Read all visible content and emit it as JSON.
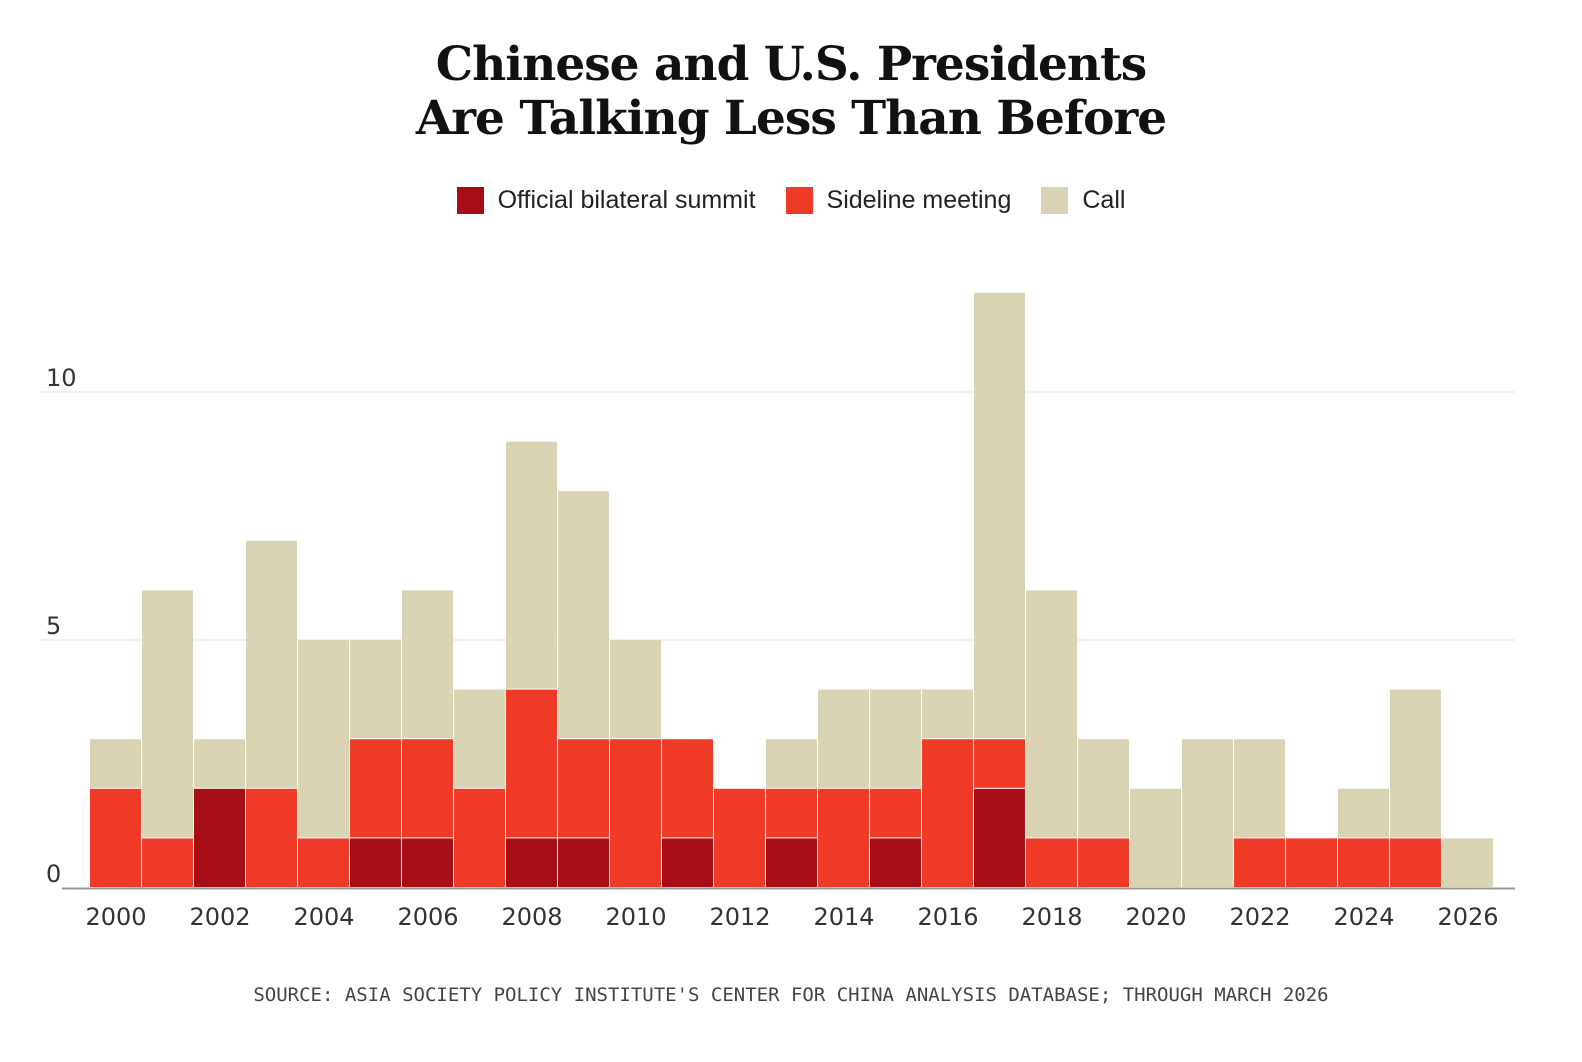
{
  "title_line1": "Chinese and U.S. Presidents",
  "title_line2": "Are Talking Less Than Before",
  "source": "SOURCE: ASIA SOCIETY POLICY INSTITUTE'S CENTER FOR CHINA ANALYSIS DATABASE; THROUGH MARCH 2026",
  "colors": {
    "summit": "#a60d14",
    "sideline": "#ef3a27",
    "call": "#d8d3b2",
    "grid": "#ececec",
    "axis": "#999999"
  },
  "chart_data": {
    "type": "bar",
    "stacked": true,
    "categories": [
      2000,
      2001,
      2002,
      2003,
      2004,
      2005,
      2006,
      2007,
      2008,
      2009,
      2010,
      2011,
      2012,
      2013,
      2014,
      2015,
      2016,
      2017,
      2018,
      2019,
      2020,
      2021,
      2022,
      2023,
      2024,
      2025,
      2026
    ],
    "x_tick_labels": [
      "2000",
      "2002",
      "2004",
      "2006",
      "2008",
      "2010",
      "2012",
      "2014",
      "2016",
      "2018",
      "2020",
      "2022",
      "2024",
      "2026"
    ],
    "y_ticks": [
      0,
      5,
      10
    ],
    "ylim": [
      0,
      12
    ],
    "grid": true,
    "legend_position": "top-center",
    "series": [
      {
        "name": "Official bilateral summit",
        "color_key": "summit",
        "values": [
          0,
          0,
          2,
          0,
          0,
          1,
          1,
          0,
          1,
          1,
          0,
          1,
          0,
          1,
          0,
          1,
          0,
          2,
          0,
          0,
          0,
          0,
          0,
          0,
          0,
          0,
          0
        ]
      },
      {
        "name": "Sideline meeting",
        "color_key": "sideline",
        "values": [
          2,
          1,
          0,
          2,
          1,
          2,
          2,
          2,
          3,
          2,
          3,
          2,
          2,
          1,
          2,
          1,
          3,
          1,
          1,
          1,
          0,
          0,
          1,
          1,
          1,
          1,
          0
        ]
      },
      {
        "name": "Call",
        "color_key": "call",
        "values": [
          1,
          5,
          1,
          5,
          4,
          2,
          3,
          2,
          5,
          5,
          2,
          0,
          0,
          1,
          2,
          2,
          1,
          9,
          5,
          2,
          2,
          3,
          2,
          0,
          1,
          3,
          1
        ]
      }
    ]
  }
}
